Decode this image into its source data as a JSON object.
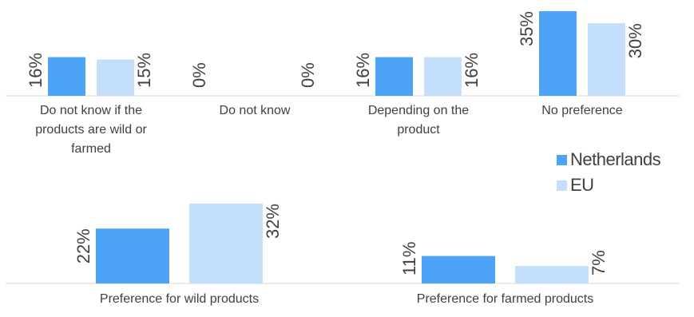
{
  "chart_data": {
    "type": "bar",
    "colors": {
      "Netherlands": "#4da3f5",
      "EU": "#c3dffc"
    },
    "legend": {
      "placement": "right",
      "entries": [
        "Netherlands",
        "EU"
      ]
    },
    "grid": false,
    "panels": [
      {
        "categories": [
          "Do not know if the products are wild or farmed",
          "Do not know",
          "Depending on the product",
          "No preference"
        ],
        "category_lines": [
          [
            "Do not know if the",
            "products are wild or",
            "farmed"
          ],
          [
            "Do not know"
          ],
          [
            "Depending on the",
            "product"
          ],
          [
            "No preference"
          ]
        ],
        "series": [
          {
            "name": "Netherlands",
            "values": [
              16,
              0,
              16,
              35
            ],
            "labels": [
              "16%",
              "0%",
              "16%",
              "35%"
            ]
          },
          {
            "name": "EU",
            "values": [
              15,
              0,
              16,
              30
            ],
            "labels": [
              "15%",
              "0%",
              "16%",
              "30%"
            ]
          }
        ],
        "ylim": [
          0,
          35
        ]
      },
      {
        "categories": [
          "Preference for wild products",
          "Preference for farmed products"
        ],
        "category_lines": [
          [
            "Preference for wild products"
          ],
          [
            "Preference for farmed products"
          ]
        ],
        "series": [
          {
            "name": "Netherlands",
            "values": [
              22,
              11
            ],
            "labels": [
              "22%",
              "11%"
            ]
          },
          {
            "name": "EU",
            "values": [
              32,
              7
            ],
            "labels": [
              "32%",
              "7%"
            ]
          }
        ],
        "ylim": [
          0,
          32
        ]
      }
    ]
  }
}
